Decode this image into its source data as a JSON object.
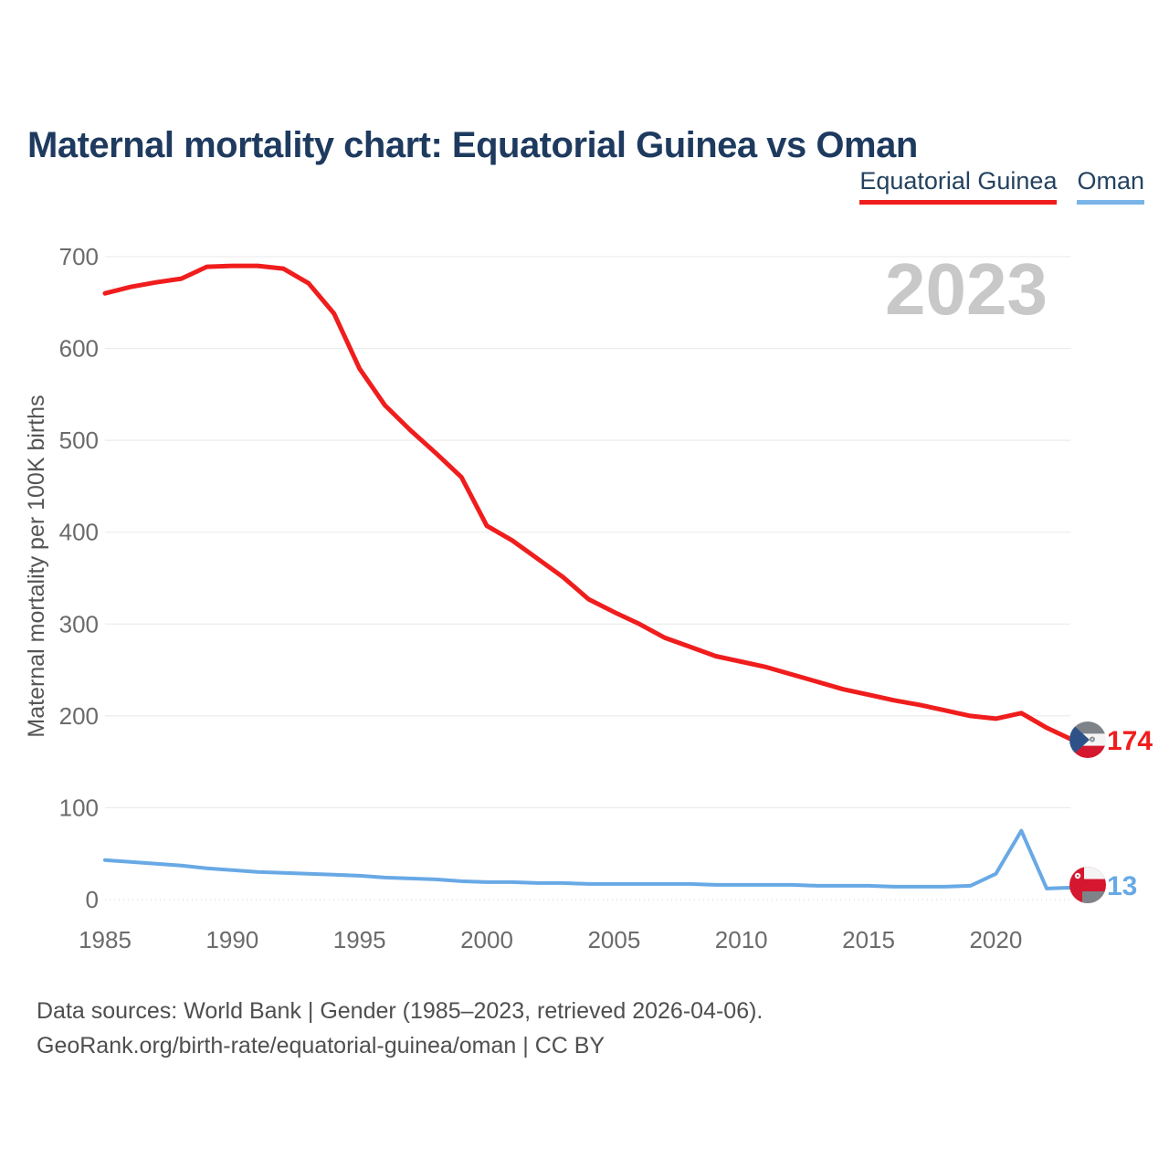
{
  "title": "Maternal mortality chart: Equatorial Guinea vs Oman",
  "legend": [
    {
      "label": "Equatorial Guinea",
      "color": "#f01d1d"
    },
    {
      "label": "Oman",
      "color": "#7ab4e8"
    }
  ],
  "watermark": "2023",
  "footer": {
    "line1": "Data sources: World Bank | Gender (1985–2023, retrieved 2026-04-06).",
    "line2": "GeoRank.org/birth-rate/equatorial-guinea/oman | CC BY"
  },
  "colors": {
    "title_navy": "#1e3a5f",
    "equatorial_guinea_red": "#f01d1d",
    "oman_blue": "#68a9e5",
    "gridline": "#e8e8e8",
    "tick_text": "#6b6b6b",
    "watermark_gray": "#c8c8c8",
    "flag_crimson": "#d5172f",
    "flag_gray_green": "#7e8389",
    "flag_triangle_blue": "#2e5288"
  },
  "chart_data": {
    "type": "line",
    "title": "Maternal mortality chart: Equatorial Guinea vs Oman",
    "xlabel": "",
    "ylabel": "Maternal mortality per 100K births",
    "xlim": [
      1985,
      2023
    ],
    "ylim": [
      0,
      700
    ],
    "xticks": [
      1985,
      1990,
      1995,
      2000,
      2005,
      2010,
      2015,
      2020
    ],
    "yticks": [
      0,
      100,
      200,
      300,
      400,
      500,
      600,
      700
    ],
    "grid": true,
    "legend_position": "top-right",
    "watermark": "2023",
    "x": [
      1985,
      1986,
      1987,
      1988,
      1989,
      1990,
      1991,
      1992,
      1993,
      1994,
      1995,
      1996,
      1997,
      1998,
      1999,
      2000,
      2001,
      2002,
      2003,
      2004,
      2005,
      2006,
      2007,
      2008,
      2009,
      2010,
      2011,
      2012,
      2013,
      2014,
      2015,
      2016,
      2017,
      2018,
      2019,
      2020,
      2021,
      2022,
      2023
    ],
    "series": [
      {
        "name": "Equatorial Guinea",
        "color": "#f01d1d",
        "line_width": 5,
        "end_label": "174",
        "values": [
          660,
          667,
          672,
          676,
          689,
          690,
          690,
          687,
          671,
          638,
          578,
          538,
          511,
          486,
          460,
          407,
          391,
          371,
          351,
          327,
          313,
          300,
          285,
          275,
          265,
          259,
          253,
          245,
          237,
          229,
          223,
          217,
          212,
          206,
          200,
          197,
          203,
          187,
          174
        ]
      },
      {
        "name": "Oman",
        "color": "#68a9e5",
        "line_width": 4,
        "end_label": "13",
        "values": [
          43,
          41,
          39,
          37,
          34,
          32,
          30,
          29,
          28,
          27,
          26,
          24,
          23,
          22,
          20,
          19,
          19,
          18,
          18,
          17,
          17,
          17,
          17,
          17,
          16,
          16,
          16,
          16,
          15,
          15,
          15,
          14,
          14,
          14,
          15,
          28,
          75,
          12,
          13
        ]
      }
    ]
  }
}
